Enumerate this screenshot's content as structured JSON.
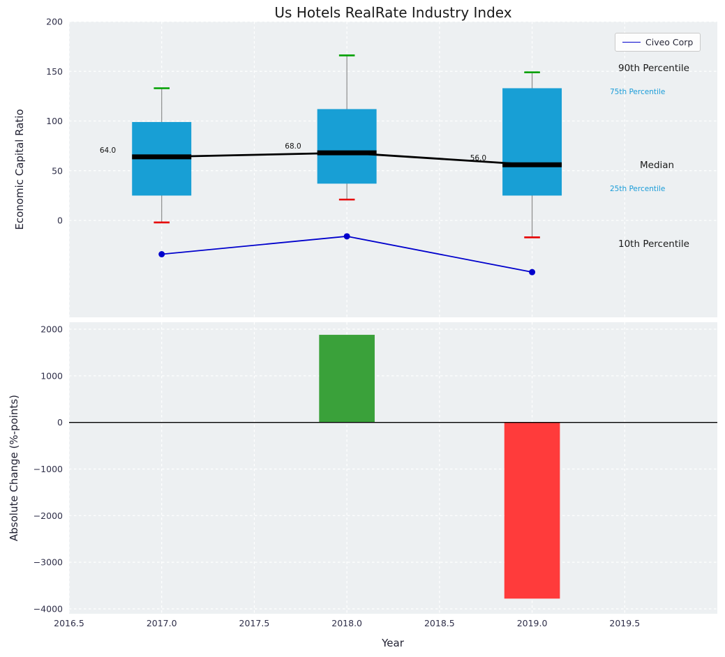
{
  "colors": {
    "plot_bg": "#edf0f2",
    "grid": "#ffffff",
    "box_fill": "#189fd5",
    "whisker": "#8c8c8c",
    "cap_high": "#00a000",
    "cap_low": "#e60000",
    "median_line": "#000000",
    "civeo_line": "#0000cc",
    "bar_positive": "#3aa13a",
    "bar_negative": "#ff3b3b",
    "zero_line": "#000000",
    "tick_text": "#2e2e48",
    "label_text": "#1f1f30",
    "annotation_primary": "#1a1a1a",
    "annotation_secondary": "#1a9cd8"
  },
  "chart_data": [
    {
      "type": "boxplot",
      "title": "Us Hotels RealRate Industry Index",
      "ylabel": "Economic Capital Ratio",
      "xlim": [
        2016.5,
        2020.0
      ],
      "ylim": [
        -97.5,
        200
      ],
      "yticks": [
        0,
        50,
        100,
        150,
        200
      ],
      "ytick_labels": [
        "0",
        "50",
        "100",
        "150",
        "200"
      ],
      "box_width": 0.32,
      "cap_width": 0.085,
      "boxes": [
        {
          "x": 2017,
          "p10": -2,
          "q1": 25,
          "median": 64,
          "q3": 99,
          "p90": 133,
          "label": "64.0"
        },
        {
          "x": 2018,
          "p10": 21,
          "q1": 37,
          "median": 68,
          "q3": 112,
          "p90": 166,
          "label": "68.0"
        },
        {
          "x": 2019,
          "p10": -17,
          "q1": 25,
          "median": 56,
          "q3": 133,
          "p90": 149,
          "label": "56.0"
        }
      ],
      "series": [
        {
          "name": "Civeo Corp",
          "x": [
            2017,
            2018,
            2019
          ],
          "values": [
            -34,
            -16,
            -52
          ]
        }
      ],
      "annotations": {
        "p90": "90th Percentile",
        "p75": "75th Percentile",
        "median": "Median",
        "p25": "25th Percentile",
        "p10": "10th Percentile"
      },
      "legend_position": "upper right",
      "grid": true
    },
    {
      "type": "bar",
      "xlabel": "Year",
      "ylabel": "Absolute Change (%-points)",
      "xlim": [
        2016.5,
        2020.0
      ],
      "ylim": [
        -4105,
        2150
      ],
      "yticks": [
        2000,
        1000,
        0,
        -1000,
        -2000,
        -3000,
        -4000
      ],
      "ytick_labels": [
        "2000",
        "1000",
        "0",
        "−1000",
        "−2000",
        "−3000",
        "−4000"
      ],
      "xticks": [
        2016.5,
        2017.0,
        2017.5,
        2018.0,
        2018.5,
        2019.0,
        2019.5
      ],
      "xtick_labels": [
        "2016.5",
        "2017.0",
        "2017.5",
        "2018.0",
        "2018.5",
        "2019.0",
        "2019.5"
      ],
      "x": [
        2018,
        2019
      ],
      "values": [
        1880,
        -3780
      ],
      "bar_width": 0.3,
      "grid": true
    }
  ]
}
